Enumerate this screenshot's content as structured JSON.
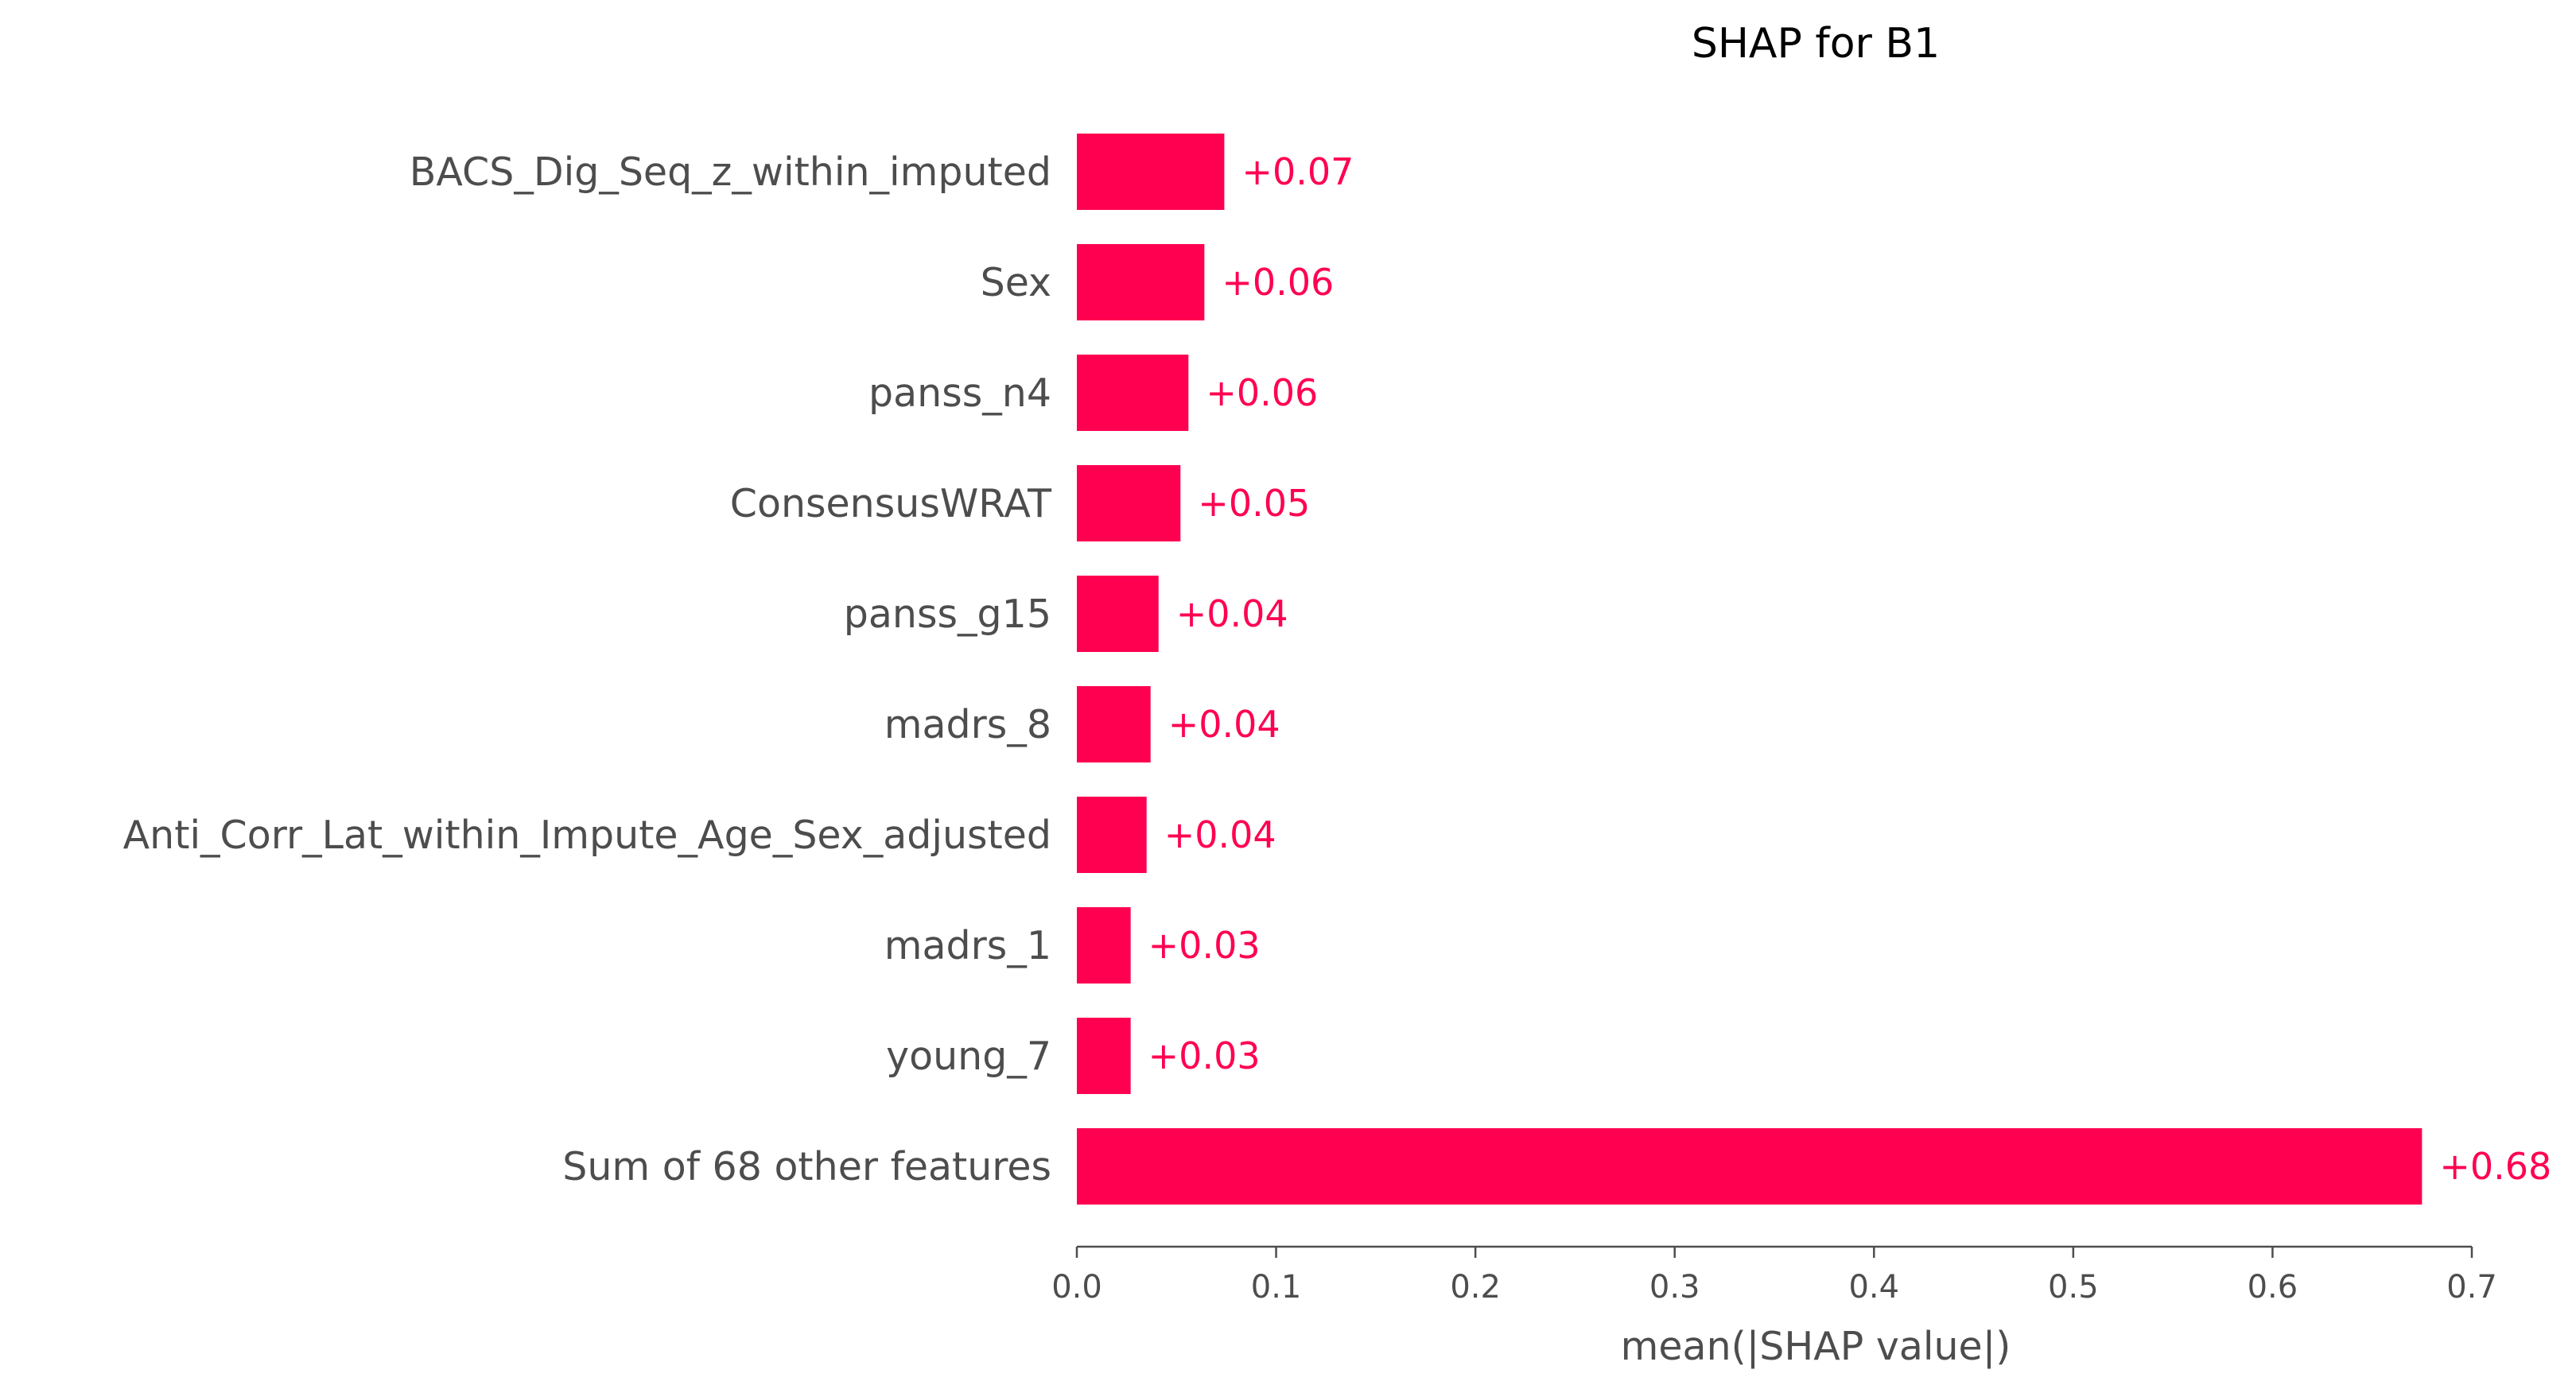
{
  "chart_data": {
    "type": "bar",
    "orientation": "horizontal",
    "title": "SHAP for B1",
    "xlabel": "mean(|SHAP value|)",
    "ylabel": "",
    "xlim": [
      0,
      0.7
    ],
    "xticks": [
      0.0,
      0.1,
      0.2,
      0.3,
      0.4,
      0.5,
      0.6,
      0.7
    ],
    "xtick_labels": [
      "0.0",
      "0.1",
      "0.2",
      "0.3",
      "0.4",
      "0.5",
      "0.6",
      "0.7"
    ],
    "grid": false,
    "bar_color": "#ff0051",
    "categories": [
      "BACS_Dig_Seq_z_within_imputed",
      "Sex",
      "panss_n4",
      "ConsensusWRAT",
      "panss_g15",
      "madrs_8",
      "Anti_Corr_Lat_within_Impute_Age_Sex_adjusted",
      "madrs_1",
      "young_7",
      "Sum of 68 other features"
    ],
    "values": [
      0.074,
      0.064,
      0.056,
      0.052,
      0.041,
      0.037,
      0.035,
      0.027,
      0.027,
      0.675
    ],
    "value_labels": [
      "+0.07",
      "+0.06",
      "+0.06",
      "+0.05",
      "+0.04",
      "+0.04",
      "+0.04",
      "+0.03",
      "+0.03",
      "+0.68"
    ]
  }
}
